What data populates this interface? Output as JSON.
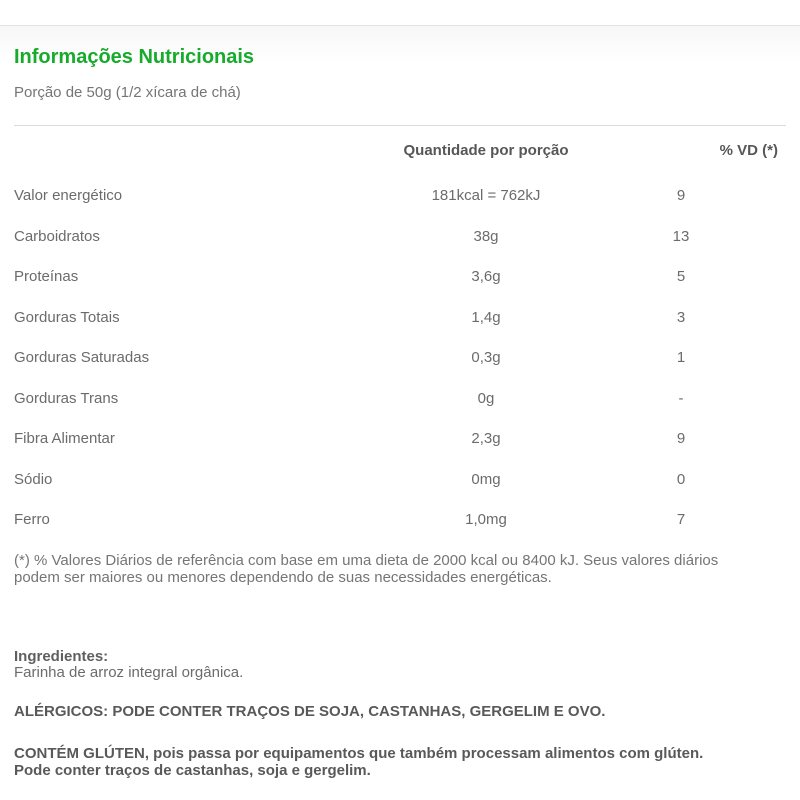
{
  "page": {
    "title": "Informações Nutricionais",
    "serving": "Porção de 50g (1/2 xícara de chá)"
  },
  "table": {
    "headers": {
      "amount": "Quantidade por porção",
      "dv": "% VD (*)"
    },
    "rows": [
      {
        "label": "Valor energético",
        "amount": "181kcal = 762kJ",
        "dv": "9"
      },
      {
        "label": "Carboidratos",
        "amount": "38g",
        "dv": "13"
      },
      {
        "label": "Proteínas",
        "amount": "3,6g",
        "dv": "5"
      },
      {
        "label": "Gorduras Totais",
        "amount": "1,4g",
        "dv": "3"
      },
      {
        "label": "Gorduras Saturadas",
        "amount": "0,3g",
        "dv": "1"
      },
      {
        "label": "Gorduras Trans",
        "amount": "0g",
        "dv": "-"
      },
      {
        "label": "Fibra Alimentar",
        "amount": "2,3g",
        "dv": "9"
      },
      {
        "label": "Sódio",
        "amount": "0mg",
        "dv": "0"
      },
      {
        "label": "Ferro",
        "amount": "1,0mg",
        "dv": "7"
      }
    ],
    "footnote": "(*) % Valores Diários de referência com base em uma dieta de 2000 kcal ou 8400 kJ. Seus valores diários podem ser maiores ou menores dependendo de suas necessidades energéticas."
  },
  "ingredients": {
    "label": "Ingredientes:",
    "value": "Farinha de arroz integral orgânica."
  },
  "allergens_text": "ALÉRGICOS: PODE CONTER TRAÇOS DE SOJA, CASTANHAS, GERGELIM E OVO.",
  "gluten_text": "CONTÉM GLÚTEN, pois passa por equipamentos que também processam alimentos com glúten. Pode conter traços de castanhas, soja e gergelim.",
  "colors": {
    "accent_green": "#17ab2b"
  }
}
